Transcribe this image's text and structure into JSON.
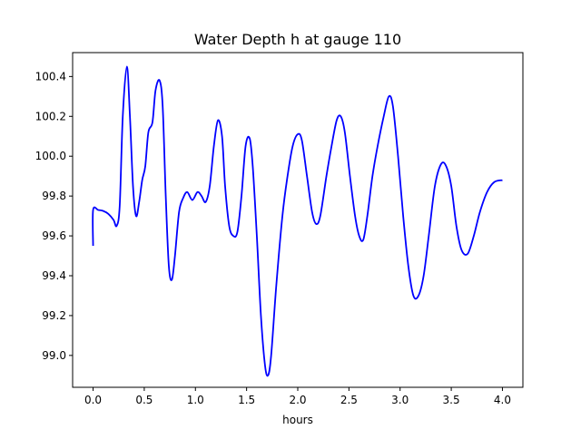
{
  "chart_data": {
    "type": "line",
    "title": "Water Depth h at gauge 110",
    "xlabel": "hours",
    "ylabel": "",
    "xlim": [
      -0.2,
      4.2
    ],
    "ylim": [
      98.84,
      100.52
    ],
    "xticks": [
      0.0,
      0.5,
      1.0,
      1.5,
      2.0,
      2.5,
      3.0,
      3.5,
      4.0
    ],
    "xtick_labels": [
      "0.0",
      "0.5",
      "1.0",
      "1.5",
      "2.0",
      "2.5",
      "3.0",
      "3.5",
      "4.0"
    ],
    "yticks": [
      99.0,
      99.2,
      99.4,
      99.6,
      99.8,
      100.0,
      100.2,
      100.4
    ],
    "ytick_labels": [
      "99.0",
      "99.2",
      "99.4",
      "99.6",
      "99.8",
      "100.0",
      "100.2",
      "100.4"
    ],
    "grid": false,
    "series": [
      {
        "color": "#0000ff",
        "points": [
          [
            0.0,
            99.55
          ],
          [
            0.0,
            99.73
          ],
          [
            0.05,
            99.73
          ],
          [
            0.1,
            99.725
          ],
          [
            0.15,
            99.71
          ],
          [
            0.2,
            99.68
          ],
          [
            0.23,
            99.65
          ],
          [
            0.26,
            99.75
          ],
          [
            0.29,
            100.2
          ],
          [
            0.33,
            100.45
          ],
          [
            0.36,
            100.2
          ],
          [
            0.39,
            99.85
          ],
          [
            0.42,
            99.7
          ],
          [
            0.45,
            99.77
          ],
          [
            0.48,
            99.88
          ],
          [
            0.51,
            99.95
          ],
          [
            0.54,
            100.12
          ],
          [
            0.58,
            100.17
          ],
          [
            0.61,
            100.33
          ],
          [
            0.65,
            100.38
          ],
          [
            0.68,
            100.25
          ],
          [
            0.71,
            99.8
          ],
          [
            0.74,
            99.45
          ],
          [
            0.77,
            99.38
          ],
          [
            0.8,
            99.5
          ],
          [
            0.84,
            99.72
          ],
          [
            0.88,
            99.79
          ],
          [
            0.92,
            99.82
          ],
          [
            0.97,
            99.78
          ],
          [
            1.02,
            99.82
          ],
          [
            1.06,
            99.8
          ],
          [
            1.1,
            99.77
          ],
          [
            1.14,
            99.85
          ],
          [
            1.18,
            100.05
          ],
          [
            1.22,
            100.18
          ],
          [
            1.26,
            100.1
          ],
          [
            1.29,
            99.85
          ],
          [
            1.33,
            99.65
          ],
          [
            1.37,
            99.6
          ],
          [
            1.41,
            99.62
          ],
          [
            1.45,
            99.8
          ],
          [
            1.49,
            100.05
          ],
          [
            1.53,
            100.09
          ],
          [
            1.56,
            99.95
          ],
          [
            1.6,
            99.6
          ],
          [
            1.64,
            99.2
          ],
          [
            1.68,
            98.95
          ],
          [
            1.71,
            98.9
          ],
          [
            1.74,
            99.0
          ],
          [
            1.79,
            99.35
          ],
          [
            1.85,
            99.7
          ],
          [
            1.9,
            99.9
          ],
          [
            1.95,
            100.05
          ],
          [
            2.0,
            100.11
          ],
          [
            2.04,
            100.08
          ],
          [
            2.09,
            99.9
          ],
          [
            2.14,
            99.72
          ],
          [
            2.18,
            99.66
          ],
          [
            2.22,
            99.7
          ],
          [
            2.28,
            99.9
          ],
          [
            2.33,
            100.05
          ],
          [
            2.38,
            100.18
          ],
          [
            2.42,
            100.2
          ],
          [
            2.46,
            100.12
          ],
          [
            2.51,
            99.9
          ],
          [
            2.56,
            99.7
          ],
          [
            2.6,
            99.6
          ],
          [
            2.64,
            99.58
          ],
          [
            2.68,
            99.7
          ],
          [
            2.73,
            99.9
          ],
          [
            2.78,
            100.05
          ],
          [
            2.84,
            100.2
          ],
          [
            2.89,
            100.3
          ],
          [
            2.93,
            100.25
          ],
          [
            2.98,
            100.0
          ],
          [
            3.03,
            99.7
          ],
          [
            3.08,
            99.45
          ],
          [
            3.13,
            99.3
          ],
          [
            3.18,
            99.3
          ],
          [
            3.23,
            99.4
          ],
          [
            3.28,
            99.6
          ],
          [
            3.34,
            99.85
          ],
          [
            3.4,
            99.96
          ],
          [
            3.45,
            99.95
          ],
          [
            3.5,
            99.85
          ],
          [
            3.55,
            99.65
          ],
          [
            3.6,
            99.53
          ],
          [
            3.66,
            99.51
          ],
          [
            3.72,
            99.6
          ],
          [
            3.78,
            99.72
          ],
          [
            3.85,
            99.82
          ],
          [
            3.92,
            99.87
          ],
          [
            4.0,
            99.88
          ]
        ]
      }
    ]
  }
}
